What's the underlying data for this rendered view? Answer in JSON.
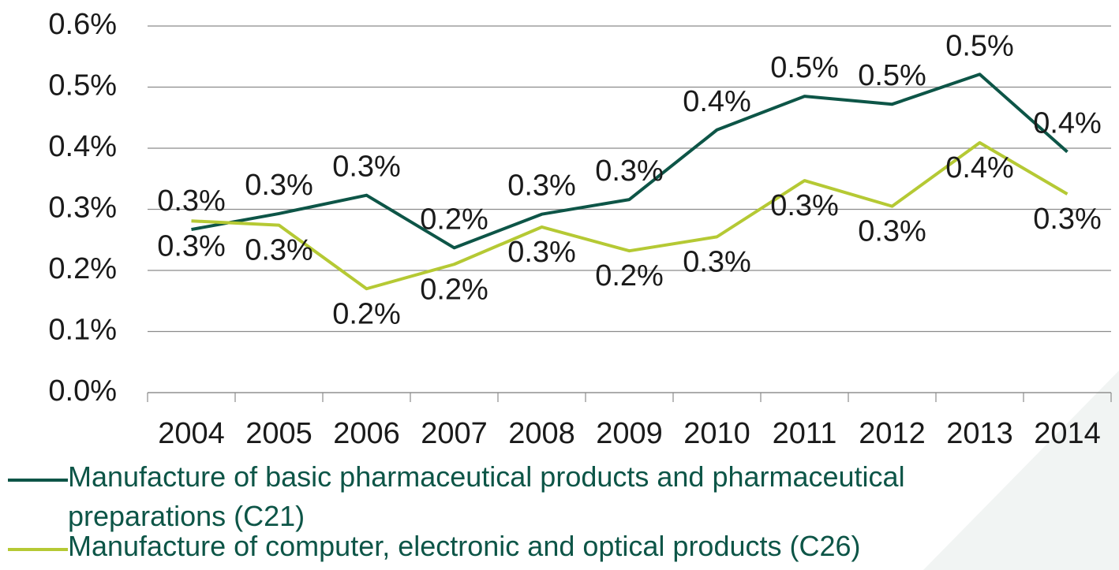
{
  "chart_data": {
    "type": "line",
    "categories": [
      "2004",
      "2005",
      "2006",
      "2007",
      "2008",
      "2009",
      "2010",
      "2011",
      "2012",
      "2013",
      "2014"
    ],
    "series": [
      {
        "name": "Manufacture of basic pharmaceutical products and pharmaceutical preparations (C21)",
        "color": "#0d5547",
        "values": [
          0.267,
          0.293,
          0.323,
          0.237,
          0.292,
          0.316,
          0.43,
          0.485,
          0.472,
          0.521,
          0.394
        ],
        "value_labels": [
          "0.3%",
          "0.3%",
          "0.3%",
          "0.2%",
          "0.3%",
          "0.3%",
          "0.4%",
          "0.5%",
          "0.5%",
          "0.5%",
          "0.4%"
        ]
      },
      {
        "name": "Manufacture of computer, electronic and optical products (C26)",
        "color": "#b5c934",
        "values": [
          0.281,
          0.274,
          0.17,
          0.21,
          0.271,
          0.232,
          0.255,
          0.347,
          0.305,
          0.409,
          0.325
        ],
        "value_labels": [
          "0.3%",
          "0.3%",
          "0.2%",
          "0.2%",
          "0.3%",
          "0.2%",
          "0.3%",
          "0.3%",
          "0.3%",
          "0.4%",
          "0.3%"
        ]
      }
    ],
    "ylim": [
      0,
      0.6
    ],
    "yticks": [
      {
        "value": 0,
        "label": "0.0%"
      },
      {
        "value": 0.1,
        "label": "0.1%"
      },
      {
        "value": 0.2,
        "label": "0.2%"
      },
      {
        "value": 0.3,
        "label": "0.3%"
      },
      {
        "value": 0.4,
        "label": "0.4%"
      },
      {
        "value": 0.5,
        "label": "0.5%"
      },
      {
        "value": 0.6,
        "label": "0.6%"
      }
    ],
    "grid": true,
    "legend": "bottom"
  }
}
